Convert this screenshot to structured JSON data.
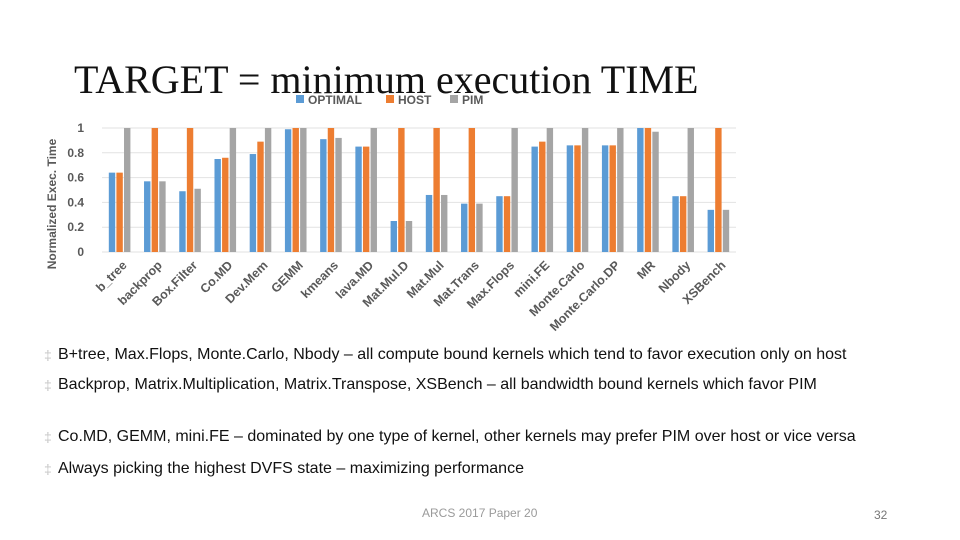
{
  "slide": {
    "title": "TARGET = minimum execution TIME",
    "bullets": [
      "B+tree, Max.Flops, Monte.Carlo, Nbody – all compute bound kernels which tend to favor execution only on host",
      "Backprop, Matrix.Multiplication, Matrix.Transpose, XSBench – all bandwidth bound kernels which favor PIM",
      "Co.MD, GEMM, mini.FE – dominated by one type of kernel, other kernels may prefer PIM over host or vice versa",
      "Always picking the highest DVFS state – maximizing performance"
    ],
    "footer": "ARCS 2017 Paper 20",
    "page_number": "32"
  },
  "chart_data": {
    "type": "bar",
    "title": "",
    "xlabel": "",
    "ylabel": "Normalized Exec. Time",
    "ylim": [
      0,
      1
    ],
    "yticks": [
      0,
      0.2,
      0.4,
      0.6,
      0.8,
      1
    ],
    "ytick_labels": [
      "0",
      "0.2",
      "0.4",
      "0.6",
      "0.8",
      "1"
    ],
    "grid": true,
    "legend_position": "top",
    "categories": [
      "b_tree",
      "backprop",
      "Box.Filter",
      "Co.MD",
      "Dev.Mem",
      "GEMM",
      "kmeans",
      "lava.MD",
      "Mat.Mul.D",
      "Mat.Mul",
      "Mat.Trans",
      "Max.Flops",
      "mini.FE",
      "Monte.Carlo",
      "Monte.Carlo.DP",
      "MR",
      "Nbody",
      "XSBench"
    ],
    "series": [
      {
        "name": "OPTIMAL",
        "color": "#5b9bd5",
        "values": [
          0.64,
          0.57,
          0.49,
          0.75,
          0.79,
          0.99,
          0.91,
          0.85,
          0.25,
          0.46,
          0.39,
          0.45,
          0.85,
          0.86,
          0.86,
          1.0,
          0.45,
          0.34
        ]
      },
      {
        "name": "HOST",
        "color": "#ed7d31",
        "values": [
          0.64,
          1.0,
          1.0,
          0.76,
          0.89,
          1.0,
          1.0,
          0.85,
          1.0,
          1.0,
          1.0,
          0.45,
          0.89,
          0.86,
          0.86,
          1.0,
          0.45,
          1.0
        ]
      },
      {
        "name": "PIM",
        "color": "#a5a5a5",
        "values": [
          1.0,
          0.57,
          0.51,
          1.0,
          1.0,
          1.0,
          0.92,
          1.0,
          0.25,
          0.46,
          0.39,
          1.0,
          1.0,
          1.0,
          1.0,
          0.97,
          1.0,
          0.34
        ]
      }
    ]
  }
}
